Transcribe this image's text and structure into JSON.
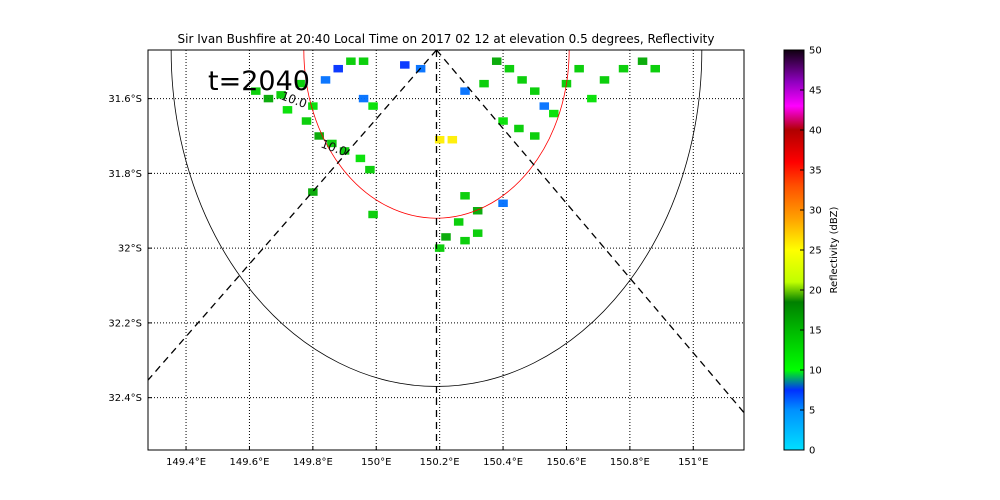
{
  "chart_data": {
    "type": "heatmap",
    "title": "Sir Ivan Bushfire at 20:40 Local Time on 2017 02 12 at elevation 0.5 degrees, Reflectivity",
    "annotation": "t=2040",
    "xlim": [
      149.28,
      151.16
    ],
    "ylim": [
      -32.54,
      -31.47
    ],
    "x_ticks": [
      149.4,
      149.6,
      149.8,
      150.0,
      150.2,
      150.4,
      150.6,
      150.8,
      151.0
    ],
    "x_tick_labels": [
      "149.4°E",
      "149.6°E",
      "149.8°E",
      "150°E",
      "150.2°E",
      "150.4°E",
      "150.6°E",
      "150.8°E",
      "151°E"
    ],
    "y_ticks": [
      -31.6,
      -31.8,
      -32.0,
      -32.2,
      -32.4
    ],
    "y_tick_labels": [
      "31.6°S",
      "31.8°S",
      "32°S",
      "32.2°S",
      "32.4°S"
    ],
    "grid": true,
    "radar_site": [
      150.19,
      -31.47
    ],
    "range_rings": [
      {
        "radius_deg": 0.45,
        "color": "#ff0000"
      },
      {
        "radius_deg": 0.9,
        "color": "#000000"
      }
    ],
    "colorbar": {
      "label": "Reflectivity (dBZ)",
      "range": [
        0,
        50
      ],
      "ticks": [
        0,
        5,
        10,
        15,
        20,
        25,
        30,
        35,
        40,
        45,
        50
      ]
    },
    "contour_labels": [
      "10.0",
      "10.0"
    ],
    "colors": {
      "echo_green": "#00e000",
      "echo_dark": "#00a000",
      "echo_blue": "#0040ff",
      "echo_yellow": "#ffee00",
      "red_ring": "#ff0000"
    },
    "echo_cells": [
      {
        "x": 149.62,
        "y": -31.58,
        "dbz": 12
      },
      {
        "x": 149.66,
        "y": -31.6,
        "dbz": 14
      },
      {
        "x": 149.7,
        "y": -31.59,
        "dbz": 12
      },
      {
        "x": 149.72,
        "y": -31.63,
        "dbz": 11
      },
      {
        "x": 149.78,
        "y": -31.66,
        "dbz": 12
      },
      {
        "x": 149.82,
        "y": -31.7,
        "dbz": 14
      },
      {
        "x": 149.86,
        "y": -31.72,
        "dbz": 13
      },
      {
        "x": 149.9,
        "y": -31.74,
        "dbz": 12
      },
      {
        "x": 149.95,
        "y": -31.76,
        "dbz": 11
      },
      {
        "x": 149.98,
        "y": -31.79,
        "dbz": 12
      },
      {
        "x": 149.84,
        "y": -31.55,
        "dbz": 9
      },
      {
        "x": 149.88,
        "y": -31.52,
        "dbz": 8
      },
      {
        "x": 149.96,
        "y": -31.6,
        "dbz": 9
      },
      {
        "x": 149.99,
        "y": -31.62,
        "dbz": 10
      },
      {
        "x": 149.92,
        "y": -31.5,
        "dbz": 13
      },
      {
        "x": 149.96,
        "y": -31.5,
        "dbz": 12
      },
      {
        "x": 149.76,
        "y": -31.56,
        "dbz": 12
      },
      {
        "x": 149.8,
        "y": -31.62,
        "dbz": 11
      },
      {
        "x": 149.8,
        "y": -31.85,
        "dbz": 14
      },
      {
        "x": 149.99,
        "y": -31.91,
        "dbz": 12
      },
      {
        "x": 150.09,
        "y": -31.51,
        "dbz": 8
      },
      {
        "x": 150.14,
        "y": -31.52,
        "dbz": 9
      },
      {
        "x": 150.2,
        "y": -31.71,
        "dbz": 21
      },
      {
        "x": 150.24,
        "y": -31.71,
        "dbz": 22
      },
      {
        "x": 150.28,
        "y": -31.58,
        "dbz": 9
      },
      {
        "x": 150.34,
        "y": -31.56,
        "dbz": 13
      },
      {
        "x": 150.38,
        "y": -31.5,
        "dbz": 14
      },
      {
        "x": 150.42,
        "y": -31.52,
        "dbz": 13
      },
      {
        "x": 150.46,
        "y": -31.55,
        "dbz": 12
      },
      {
        "x": 150.5,
        "y": -31.58,
        "dbz": 13
      },
      {
        "x": 150.53,
        "y": -31.62,
        "dbz": 9
      },
      {
        "x": 150.56,
        "y": -31.64,
        "dbz": 11
      },
      {
        "x": 150.6,
        "y": -31.56,
        "dbz": 12
      },
      {
        "x": 150.64,
        "y": -31.52,
        "dbz": 13
      },
      {
        "x": 150.68,
        "y": -31.6,
        "dbz": 11
      },
      {
        "x": 150.72,
        "y": -31.55,
        "dbz": 12
      },
      {
        "x": 150.78,
        "y": -31.52,
        "dbz": 13
      },
      {
        "x": 150.84,
        "y": -31.5,
        "dbz": 14
      },
      {
        "x": 150.88,
        "y": -31.52,
        "dbz": 12
      },
      {
        "x": 150.4,
        "y": -31.66,
        "dbz": 10
      },
      {
        "x": 150.45,
        "y": -31.68,
        "dbz": 12
      },
      {
        "x": 150.5,
        "y": -31.7,
        "dbz": 12
      },
      {
        "x": 150.28,
        "y": -31.86,
        "dbz": 13
      },
      {
        "x": 150.32,
        "y": -31.9,
        "dbz": 14
      },
      {
        "x": 150.26,
        "y": -31.93,
        "dbz": 13
      },
      {
        "x": 150.22,
        "y": -31.97,
        "dbz": 14
      },
      {
        "x": 150.28,
        "y": -31.98,
        "dbz": 13
      },
      {
        "x": 150.32,
        "y": -31.96,
        "dbz": 12
      },
      {
        "x": 150.2,
        "y": -32.0,
        "dbz": 12
      },
      {
        "x": 150.4,
        "y": -31.88,
        "dbz": 9
      }
    ]
  }
}
